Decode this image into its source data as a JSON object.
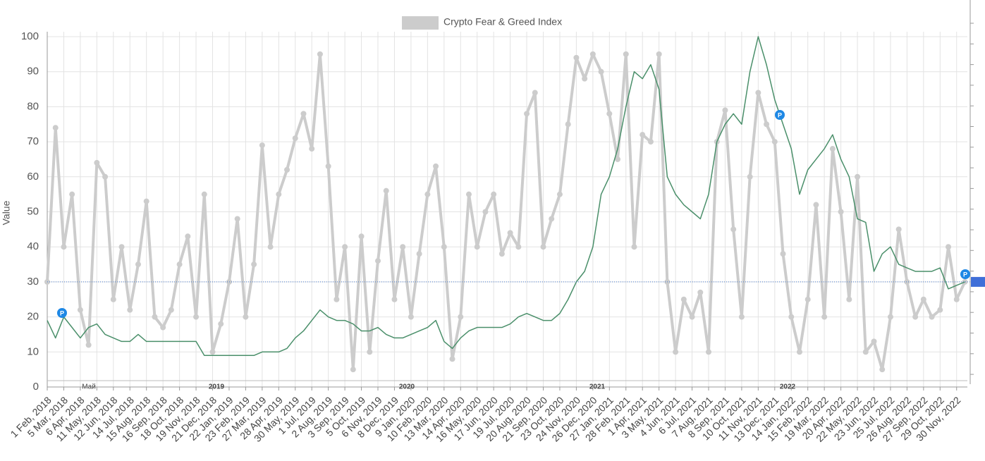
{
  "chart_data": {
    "type": "line",
    "y_label": "Value",
    "ylim": [
      0,
      100
    ],
    "yticks": [
      0,
      10,
      20,
      30,
      40,
      50,
      60,
      70,
      80,
      90,
      100
    ],
    "grid": true,
    "legend": "top",
    "categories": [
      "1 Feb, 2018",
      null,
      "5 Mar, 2018",
      null,
      "6 Apr, 2018",
      null,
      "11 May, 2018",
      null,
      "12 Jun, 2018",
      null,
      "14 Jul, 2018",
      null,
      "15 Aug, 2018",
      null,
      "16 Sep, 2018",
      null,
      "18 Oct, 2018",
      null,
      "19 Nov, 2018",
      null,
      "21 Dec, 2018",
      null,
      "22 Jan, 2019",
      null,
      "23 Feb, 2019",
      null,
      "27 Mar, 2019",
      null,
      "28 Apr, 2019",
      null,
      "30 May, 2019",
      null,
      "1 Jul, 2019",
      null,
      "2 Aug, 2019",
      null,
      "3 Sep, 2019",
      null,
      "5 Oct, 2019",
      null,
      "6 Nov, 2019",
      null,
      "8 Dec, 2019",
      null,
      "9 Jan, 2020",
      null,
      "10 Feb, 2020",
      null,
      "13 Mar, 2020",
      null,
      "14 Apr, 2020",
      null,
      "16 May, 2020",
      null,
      "17 Jun, 2020",
      null,
      "19 Jul, 2020",
      null,
      "20 Aug, 2020",
      null,
      "21 Sep, 2020",
      null,
      "23 Oct, 2020",
      null,
      "24 Nov, 2020",
      null,
      "26 Dec, 2020",
      null,
      "27 Jan, 2021",
      null,
      "28 Feb, 2021",
      null,
      "1 Apr, 2021",
      null,
      "3 May, 2021",
      null,
      "4 Jun, 2021",
      null,
      "6 Jul, 2021",
      null,
      "7 Aug, 2021",
      null,
      "8 Sep, 2021",
      null,
      "10 Oct, 2021",
      null,
      "11 Nov, 2021",
      null,
      "13 Dec, 2021",
      null,
      "14 Jan, 2022",
      null,
      "15 Feb, 2022",
      null,
      "19 Mar, 2022",
      null,
      "20 Apr, 2022",
      null,
      "22 May, 2022",
      null,
      "23 Jun, 2022",
      null,
      "25 Jul, 2022",
      null,
      "26 Aug, 2022",
      null,
      "27 Sep, 2022",
      null,
      "29 Oct, 2022",
      null,
      "30 Nov, 2022",
      null
    ],
    "series": [
      {
        "name": "Crypto Fear & Greed Index",
        "color": "#cccccc",
        "values": [
          30,
          74,
          40,
          55,
          22,
          12,
          64,
          60,
          25,
          40,
          22,
          35,
          53,
          20,
          17,
          22,
          35,
          43,
          20,
          55,
          10,
          18,
          30,
          48,
          20,
          35,
          69,
          40,
          55,
          62,
          71,
          78,
          68,
          95,
          63,
          25,
          40,
          5,
          43,
          10,
          36,
          56,
          25,
          40,
          20,
          38,
          55,
          63,
          40,
          8,
          20,
          55,
          40,
          50,
          55,
          38,
          44,
          40,
          78,
          84,
          40,
          48,
          55,
          75,
          94,
          88,
          95,
          90,
          78,
          65,
          95,
          40,
          72,
          70,
          95,
          30,
          10,
          25,
          20,
          27,
          10,
          70,
          79,
          45,
          20,
          60,
          84,
          75,
          70,
          38,
          20,
          10,
          25,
          52,
          20,
          68,
          50,
          25,
          60,
          10,
          13,
          5,
          20,
          45,
          30,
          20,
          25,
          20,
          22,
          40,
          25,
          30
        ]
      },
      {
        "color": "#4a8f6a",
        "values": [
          19,
          14,
          20,
          17,
          14,
          17,
          18,
          15,
          14,
          13,
          13,
          15,
          13,
          13,
          13,
          13,
          13,
          13,
          13,
          9,
          9,
          9,
          9,
          9,
          9,
          9,
          10,
          10,
          10,
          11,
          14,
          16,
          19,
          22,
          20,
          19,
          19,
          18,
          16,
          16,
          17,
          15,
          14,
          14,
          15,
          16,
          17,
          19,
          13,
          11,
          14,
          16,
          17,
          17,
          17,
          17,
          18,
          20,
          21,
          20,
          19,
          19,
          21,
          25,
          30,
          33,
          40,
          55,
          60,
          68,
          80,
          90,
          88,
          92,
          85,
          60,
          55,
          52,
          50,
          48,
          55,
          70,
          75,
          78,
          75,
          90,
          100,
          92,
          82,
          75,
          68,
          55,
          62,
          65,
          68,
          72,
          65,
          60,
          48,
          47,
          33,
          38,
          40,
          35,
          34,
          33,
          33,
          33,
          34,
          28,
          29,
          30
        ]
      }
    ],
    "time_labels": [
      "Май",
      "2019",
      "2020",
      "2021",
      "2022"
    ],
    "markers": [
      "P",
      "P",
      "P"
    ]
  }
}
